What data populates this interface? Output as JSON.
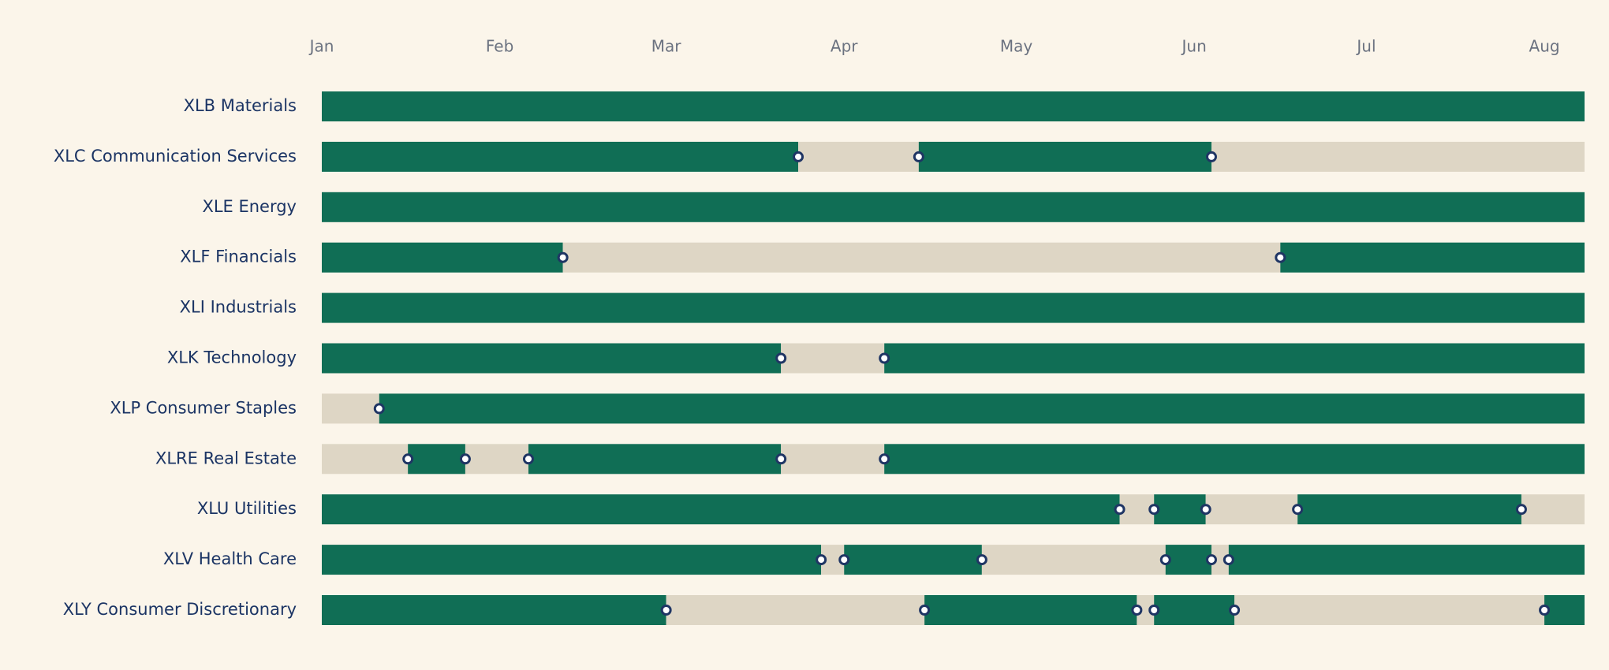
{
  "chart_data": {
    "type": "timeline",
    "x_axis": {
      "ticks": [
        "Jan",
        "Feb",
        "Mar",
        "Apr",
        "May",
        "Jun",
        "Jul",
        "Aug"
      ],
      "range": [
        "2024-01-01",
        "2024-08-08"
      ]
    },
    "colors": {
      "background": "#fbf5ea",
      "on_segment": "#106e55",
      "off_segment": "#ded6c5",
      "marker_stroke": "#1f3564",
      "marker_fill": "#ffffff",
      "row_label": "#1b3464",
      "tick_label": "#6b7280"
    },
    "rows": [
      {
        "ticker": "XLB",
        "name": "Materials",
        "label": "XLB  Materials",
        "segments": [
          {
            "start": "2024-01-01",
            "end": "2024-08-08",
            "state": "on"
          }
        ],
        "markers": []
      },
      {
        "ticker": "XLC",
        "name": "Communication Services",
        "label": "XLC  Communication Services",
        "segments": [
          {
            "start": "2024-01-01",
            "end": "2024-03-24",
            "state": "on"
          },
          {
            "start": "2024-03-24",
            "end": "2024-04-14",
            "state": "off"
          },
          {
            "start": "2024-04-14",
            "end": "2024-06-04",
            "state": "on"
          },
          {
            "start": "2024-06-04",
            "end": "2024-08-08",
            "state": "off"
          }
        ],
        "markers": [
          "2024-03-24",
          "2024-04-14",
          "2024-06-04"
        ]
      },
      {
        "ticker": "XLE",
        "name": "Energy",
        "label": "XLE  Energy",
        "segments": [
          {
            "start": "2024-01-01",
            "end": "2024-08-08",
            "state": "on"
          }
        ],
        "markers": []
      },
      {
        "ticker": "XLF",
        "name": "Financials",
        "label": "XLF  Financials",
        "segments": [
          {
            "start": "2024-01-01",
            "end": "2024-02-12",
            "state": "on"
          },
          {
            "start": "2024-02-12",
            "end": "2024-06-16",
            "state": "off"
          },
          {
            "start": "2024-06-16",
            "end": "2024-08-08",
            "state": "on"
          }
        ],
        "markers": [
          "2024-02-12",
          "2024-06-16"
        ]
      },
      {
        "ticker": "XLI",
        "name": "Industrials",
        "label": "XLI  Industrials",
        "segments": [
          {
            "start": "2024-01-01",
            "end": "2024-08-08",
            "state": "on"
          }
        ],
        "markers": []
      },
      {
        "ticker": "XLK",
        "name": "Technology",
        "label": "XLK  Technology",
        "segments": [
          {
            "start": "2024-01-01",
            "end": "2024-03-21",
            "state": "on"
          },
          {
            "start": "2024-03-21",
            "end": "2024-04-08",
            "state": "off"
          },
          {
            "start": "2024-04-08",
            "end": "2024-08-08",
            "state": "on"
          }
        ],
        "markers": [
          "2024-03-21",
          "2024-04-08"
        ]
      },
      {
        "ticker": "XLP",
        "name": "Consumer Staples",
        "label": "XLP  Consumer Staples",
        "segments": [
          {
            "start": "2024-01-01",
            "end": "2024-01-11",
            "state": "off"
          },
          {
            "start": "2024-01-11",
            "end": "2024-08-08",
            "state": "on"
          }
        ],
        "markers": [
          "2024-01-11"
        ]
      },
      {
        "ticker": "XLRE",
        "name": "Real Estate",
        "label": "XLRE  Real Estate",
        "segments": [
          {
            "start": "2024-01-01",
            "end": "2024-01-16",
            "state": "off"
          },
          {
            "start": "2024-01-16",
            "end": "2024-01-26",
            "state": "on"
          },
          {
            "start": "2024-01-26",
            "end": "2024-02-06",
            "state": "off"
          },
          {
            "start": "2024-02-06",
            "end": "2024-03-21",
            "state": "on"
          },
          {
            "start": "2024-03-21",
            "end": "2024-04-08",
            "state": "off"
          },
          {
            "start": "2024-04-08",
            "end": "2024-08-08",
            "state": "on"
          }
        ],
        "markers": [
          "2024-01-16",
          "2024-01-26",
          "2024-02-06",
          "2024-03-21",
          "2024-04-08"
        ]
      },
      {
        "ticker": "XLU",
        "name": "Utilities",
        "label": "XLU  Utilities",
        "segments": [
          {
            "start": "2024-01-01",
            "end": "2024-05-19",
            "state": "on"
          },
          {
            "start": "2024-05-19",
            "end": "2024-05-25",
            "state": "off"
          },
          {
            "start": "2024-05-25",
            "end": "2024-06-03",
            "state": "on"
          },
          {
            "start": "2024-06-03",
            "end": "2024-06-19",
            "state": "off"
          },
          {
            "start": "2024-06-19",
            "end": "2024-07-28",
            "state": "on"
          },
          {
            "start": "2024-07-28",
            "end": "2024-08-08",
            "state": "off"
          }
        ],
        "markers": [
          "2024-05-19",
          "2024-05-25",
          "2024-06-03",
          "2024-06-19",
          "2024-07-28"
        ]
      },
      {
        "ticker": "XLV",
        "name": "Health Care",
        "label": "XLV  Health Care",
        "segments": [
          {
            "start": "2024-01-01",
            "end": "2024-03-28",
            "state": "on"
          },
          {
            "start": "2024-03-28",
            "end": "2024-04-01",
            "state": "off"
          },
          {
            "start": "2024-04-01",
            "end": "2024-04-25",
            "state": "on"
          },
          {
            "start": "2024-04-25",
            "end": "2024-05-27",
            "state": "off"
          },
          {
            "start": "2024-05-27",
            "end": "2024-06-04",
            "state": "on"
          },
          {
            "start": "2024-06-04",
            "end": "2024-06-07",
            "state": "off"
          },
          {
            "start": "2024-06-07",
            "end": "2024-08-08",
            "state": "on"
          }
        ],
        "markers": [
          "2024-03-28",
          "2024-04-01",
          "2024-04-25",
          "2024-05-27",
          "2024-06-04",
          "2024-06-07"
        ]
      },
      {
        "ticker": "XLY",
        "name": "Consumer Discretionary",
        "label": "XLY  Consumer Discretionary",
        "segments": [
          {
            "start": "2024-01-01",
            "end": "2024-03-01",
            "state": "on"
          },
          {
            "start": "2024-03-01",
            "end": "2024-04-15",
            "state": "off"
          },
          {
            "start": "2024-04-15",
            "end": "2024-05-22",
            "state": "on"
          },
          {
            "start": "2024-05-22",
            "end": "2024-05-25",
            "state": "off"
          },
          {
            "start": "2024-05-25",
            "end": "2024-06-08",
            "state": "on"
          },
          {
            "start": "2024-06-08",
            "end": "2024-08-01",
            "state": "off"
          },
          {
            "start": "2024-08-01",
            "end": "2024-08-08",
            "state": "on"
          }
        ],
        "markers": [
          "2024-03-01",
          "2024-04-15",
          "2024-05-22",
          "2024-05-25",
          "2024-06-08",
          "2024-08-01"
        ]
      }
    ]
  }
}
